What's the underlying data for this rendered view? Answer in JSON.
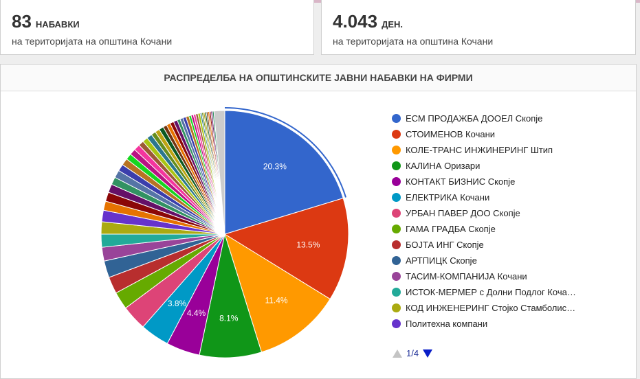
{
  "cards": [
    {
      "value": "83",
      "unit": "НАБАВКИ",
      "subtitle": "на територијата на општина Кочани"
    },
    {
      "value": "4.043",
      "unit": "ДЕН.",
      "subtitle": "на територијата на општина Кочани"
    }
  ],
  "chart_data": {
    "type": "pie",
    "title": "РАСПРЕДЕЛБА НА ОПШТИНСКИТЕ ЈАВНИ НАБАВКИ НА ФИРМИ",
    "series": [
      {
        "name": "ЕСМ ПРОДАЖБА ДООЕЛ Скопје",
        "value": 20.3,
        "label": "20.3%",
        "color": "#3366cc"
      },
      {
        "name": "СТОИМЕНОВ Кочани",
        "value": 13.5,
        "label": "13.5%",
        "color": "#dc3912"
      },
      {
        "name": "КОЛЕ-ТРАНС ИНЖИНЕРИНГ Штип",
        "value": 11.4,
        "label": "11.4%",
        "color": "#ff9900"
      },
      {
        "name": "КАЛИНА Оризари",
        "value": 8.1,
        "label": "8.1%",
        "color": "#109618"
      },
      {
        "name": "КОНТАКТ БИЗНИС Скопје",
        "value": 4.4,
        "label": "4.4%",
        "color": "#990099"
      },
      {
        "name": "ЕЛЕКТРИКА Кочани",
        "value": 3.8,
        "label": "3.8%",
        "color": "#0099c6"
      },
      {
        "name": "УРБАН ПАВЕР ДОО Скопје",
        "value": 3.3,
        "color": "#dd4477"
      },
      {
        "name": "ГАМА ГРАДБА Скопје",
        "value": 2.3,
        "color": "#66aa00"
      },
      {
        "name": "БОЈТА ИНГ Скопје",
        "value": 2.2,
        "color": "#b82e2e"
      },
      {
        "name": "АРТПИЦК Скопје",
        "value": 2.2,
        "color": "#316395"
      },
      {
        "name": "ТАСИМ-КОМПАНИЈА Кочани",
        "value": 1.8,
        "color": "#994499"
      },
      {
        "name": "ИСТОК-МЕРМЕР с Долни Подлог Коча…",
        "value": 1.7,
        "color": "#22aa99"
      },
      {
        "name": "КОД ИНЖЕНЕРИНГ Стојко Стамболис…",
        "value": 1.6,
        "color": "#aaaa11"
      },
      {
        "name": "Политехна компани",
        "value": 1.5,
        "color": "#6633cc"
      }
    ],
    "other_slices": [
      1.2,
      1.2,
      1.1,
      1.0,
      1.0,
      0.9,
      0.9,
      0.8,
      0.8,
      0.8,
      0.7,
      0.7,
      0.7,
      0.6,
      0.6,
      0.6,
      0.5,
      0.5,
      0.5,
      0.5,
      0.4,
      0.4,
      0.4,
      0.4,
      0.3,
      0.3,
      0.3,
      0.3,
      0.3,
      0.2,
      0.2,
      0.2,
      0.2,
      0.2,
      0.2,
      0.2,
      0.2,
      0.2
    ],
    "other_colors": [
      "#e67300",
      "#8b0707",
      "#651067",
      "#329262",
      "#5574a6",
      "#3b3eac",
      "#b77322",
      "#16d620",
      "#b91383",
      "#f4359e",
      "#9c5935",
      "#a9c413",
      "#2a778d",
      "#668d1c",
      "#bea413",
      "#0c5922",
      "#743411"
    ],
    "remainder_color": "#cccccc",
    "legend_position": "right",
    "selected_index": 0
  },
  "legend": {
    "page": "1/4"
  }
}
